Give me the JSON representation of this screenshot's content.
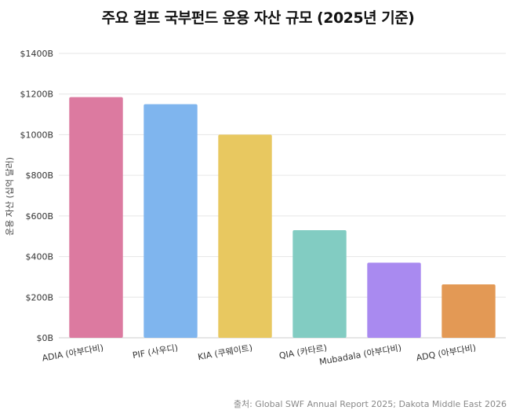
{
  "chart_data": {
    "type": "bar",
    "title": "주요 걸프 국부펀드 운용 자산 규모 (2025년 기준)",
    "ylabel": "운용 자산 (십억 달러)",
    "xlabel": "",
    "ylim": [
      0,
      1400
    ],
    "yticks": [
      0,
      200,
      400,
      600,
      800,
      1000,
      1200,
      1400
    ],
    "ytick_labels": [
      "$0B",
      "$200B",
      "$400B",
      "$600B",
      "$800B",
      "$1000B",
      "$1200B",
      "$1400B"
    ],
    "grid": true,
    "categories": [
      "ADIA (아부다비)",
      "PIF (사우디)",
      "KIA (쿠웨이트)",
      "QIA (카타르)",
      "Mubadala (아부다비)",
      "ADQ (아부다비)"
    ],
    "values": [
      1185,
      1150,
      1000,
      530,
      370,
      263
    ],
    "bar_colors": [
      "#dc7aa0",
      "#7fb5ee",
      "#e8c860",
      "#82ccc2",
      "#a98af0",
      "#e39955"
    ],
    "source": "출처: Global SWF Annual Report 2025; Dakota Middle East 2026"
  }
}
